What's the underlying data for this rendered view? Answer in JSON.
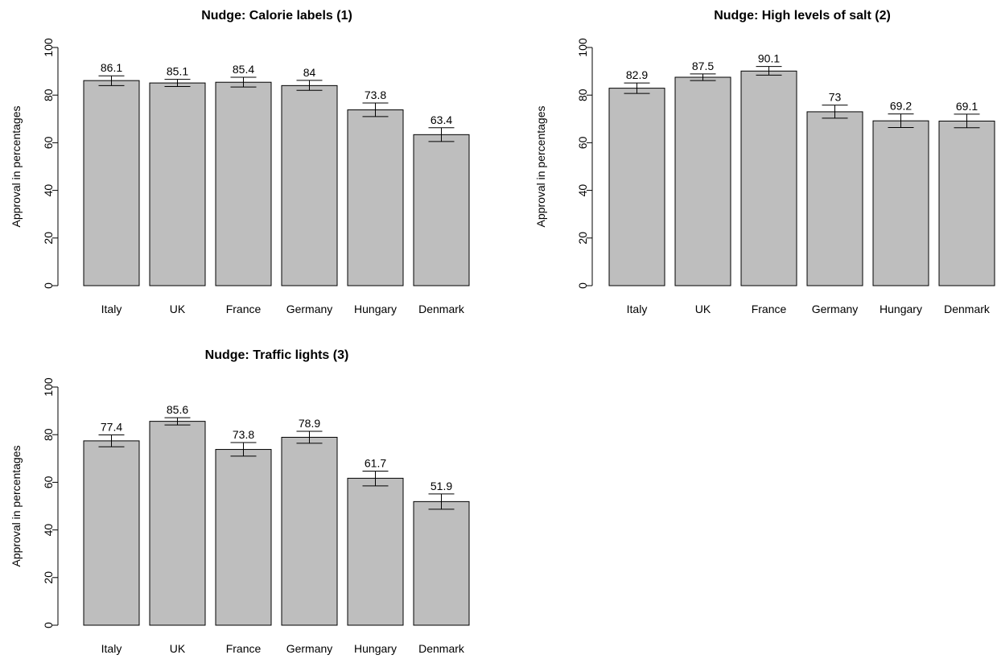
{
  "chart_data": [
    {
      "type": "bar",
      "title": "Nudge: Calorie labels (1)",
      "ylabel": "Approval in percentages",
      "xlabel": "",
      "ylim": [
        0,
        100
      ],
      "yticks": [
        0,
        20,
        40,
        60,
        80,
        100
      ],
      "categories": [
        "Italy",
        "UK",
        "France",
        "Germany",
        "Hungary",
        "Denmark"
      ],
      "values": [
        86.1,
        85.1,
        85.4,
        84,
        73.8,
        63.4
      ],
      "value_labels": [
        "86.1",
        "85.1",
        "85.4",
        "84",
        "73.8",
        "63.4"
      ],
      "error_low": [
        84.0,
        83.6,
        83.4,
        82.0,
        71.0,
        60.5
      ],
      "error_high": [
        88.1,
        86.6,
        87.5,
        86.2,
        76.7,
        66.3
      ],
      "bar_color": "#bebebe",
      "grid": false
    },
    {
      "type": "bar",
      "title": "Nudge: High levels of salt (2)",
      "ylabel": "Approval in percentages",
      "xlabel": "",
      "ylim": [
        0,
        100
      ],
      "yticks": [
        0,
        20,
        40,
        60,
        80,
        100
      ],
      "categories": [
        "Italy",
        "UK",
        "France",
        "Germany",
        "Hungary",
        "Denmark"
      ],
      "values": [
        82.9,
        87.5,
        90.1,
        73,
        69.2,
        69.1
      ],
      "value_labels": [
        "82.9",
        "87.5",
        "90.1",
        "73",
        "69.2",
        "69.1"
      ],
      "error_low": [
        80.7,
        86.1,
        88.4,
        70.3,
        66.4,
        66.3
      ],
      "error_high": [
        85.1,
        88.9,
        92.0,
        75.8,
        72.1,
        72.0
      ],
      "bar_color": "#bebebe",
      "grid": false
    },
    {
      "type": "bar",
      "title": "Nudge: Traffic lights (3)",
      "ylabel": "Approval in percentages",
      "xlabel": "",
      "ylim": [
        0,
        100
      ],
      "yticks": [
        0,
        20,
        40,
        60,
        80,
        100
      ],
      "categories": [
        "Italy",
        "UK",
        "France",
        "Germany",
        "Hungary",
        "Denmark"
      ],
      "values": [
        77.4,
        85.6,
        73.8,
        78.9,
        61.7,
        51.9
      ],
      "value_labels": [
        "77.4",
        "85.6",
        "73.8",
        "78.9",
        "61.7",
        "51.9"
      ],
      "error_low": [
        74.9,
        84.1,
        71.0,
        76.4,
        58.5,
        48.7
      ],
      "error_high": [
        79.9,
        87.1,
        76.7,
        81.4,
        64.7,
        55.1
      ],
      "bar_color": "#bebebe",
      "grid": false
    }
  ]
}
